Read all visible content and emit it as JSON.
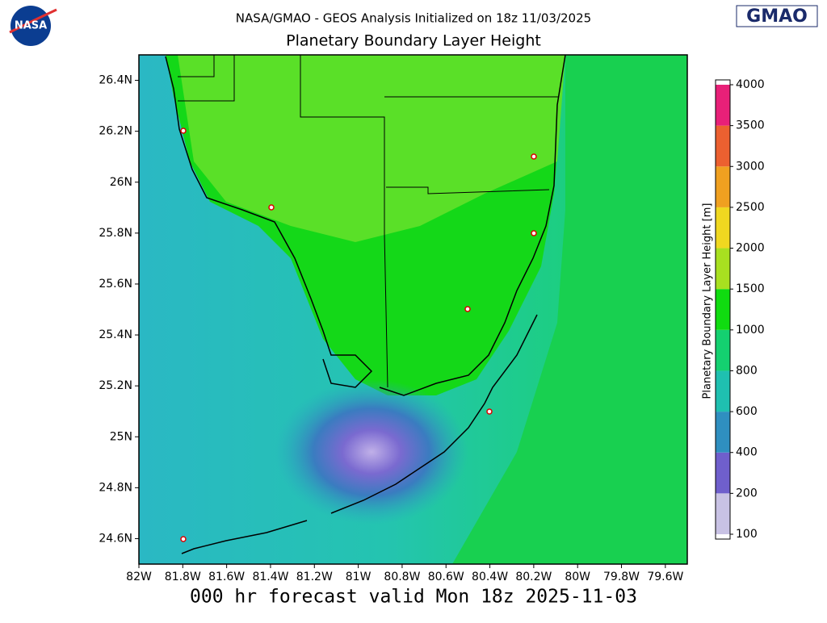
{
  "header": {
    "logo_left": "NASA",
    "subtitle": "NASA/GMAO - GEOS Analysis Initialized on 18z 11/03/2025",
    "title": "Planetary Boundary Layer Height",
    "logo_right": "GMAO"
  },
  "map": {
    "xlim": [
      -82,
      -79.5
    ],
    "ylim": [
      24.5,
      26.5
    ],
    "xticks": [
      {
        "value": -82,
        "label": "82W"
      },
      {
        "value": -81.8,
        "label": "81.8W"
      },
      {
        "value": -81.6,
        "label": "81.6W"
      },
      {
        "value": -81.4,
        "label": "81.4W"
      },
      {
        "value": -81.2,
        "label": "81.2W"
      },
      {
        "value": -81,
        "label": "81W"
      },
      {
        "value": -80.8,
        "label": "80.8W"
      },
      {
        "value": -80.6,
        "label": "80.6W"
      },
      {
        "value": -80.4,
        "label": "80.4W"
      },
      {
        "value": -80.2,
        "label": "80.2W"
      },
      {
        "value": -80,
        "label": "80W"
      },
      {
        "value": -79.8,
        "label": "79.8W"
      },
      {
        "value": -79.6,
        "label": "79.6W"
      }
    ],
    "yticks": [
      {
        "value": 24.6,
        "label": "24.6N"
      },
      {
        "value": 24.8,
        "label": "24.8N"
      },
      {
        "value": 25,
        "label": "25N"
      },
      {
        "value": 25.2,
        "label": "25.2N"
      },
      {
        "value": 25.4,
        "label": "25.4N"
      },
      {
        "value": 25.6,
        "label": "25.6N"
      },
      {
        "value": 25.8,
        "label": "25.8N"
      },
      {
        "value": 26,
        "label": "26N"
      },
      {
        "value": 26.2,
        "label": "26.2N"
      },
      {
        "value": 26.4,
        "label": "26.4N"
      }
    ]
  },
  "colorbar": {
    "label": "Planetary Boundary Layer Height [m]",
    "ticks": [
      100,
      200,
      400,
      600,
      800,
      1000,
      1500,
      2000,
      2500,
      3000,
      3500,
      4000
    ],
    "colors": [
      "#c8c2e4",
      "#6f5fcc",
      "#2f8fc0",
      "#1fc0b0",
      "#14d070",
      "#10dc10",
      "#a8e020",
      "#f0d820",
      "#f0a020",
      "#ec6030",
      "#e82078"
    ]
  },
  "footer": "000 hr forecast valid Mon 18z 2025-11-03"
}
